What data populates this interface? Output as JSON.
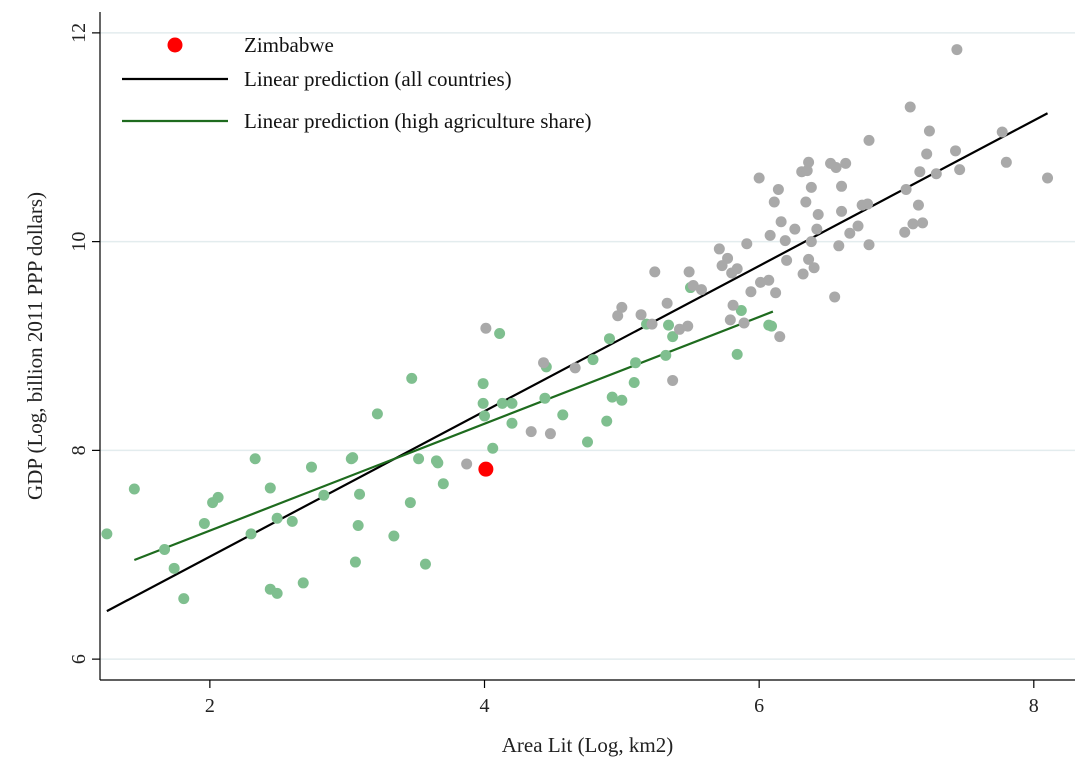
{
  "chart_data": {
    "type": "scatter",
    "title": "",
    "xlabel": "Area Lit (Log, km2)",
    "ylabel": "GDP (Log, billion 2011 PPP dollars)",
    "xlim": [
      1.2,
      8.3
    ],
    "ylim": [
      5.8,
      12.2
    ],
    "xticks": [
      2,
      4,
      6,
      8
    ],
    "yticks": [
      6,
      8,
      10,
      12
    ],
    "grid": true,
    "legend_position": "top-left",
    "colors": {
      "other": "#a9a9a9",
      "high_agri": "#7fbf8f",
      "zimbabwe": "#ff0000",
      "fit_all": "#000000",
      "fit_agri": "#1e6b1e"
    },
    "legend": [
      {
        "label": "Zimbabwe",
        "kind": "marker",
        "color": "#ff0000"
      },
      {
        "label": "Linear prediction (all countries)",
        "kind": "line",
        "color": "#000000"
      },
      {
        "label": "Linear prediction (high agriculture share)",
        "kind": "line",
        "color": "#1e6b1e"
      }
    ],
    "lines": [
      {
        "name": "Linear prediction (all countries)",
        "color": "#000000",
        "x": [
          1.25,
          8.1
        ],
        "y": [
          6.46,
          11.23
        ]
      },
      {
        "name": "Linear prediction (high agriculture share)",
        "color": "#1e6b1e",
        "x": [
          1.45,
          6.1
        ],
        "y": [
          6.95,
          9.33
        ]
      }
    ],
    "highlight": {
      "name": "Zimbabwe",
      "x": 4.01,
      "y": 7.82
    },
    "series": [
      {
        "group": "high_agri",
        "points": [
          [
            1.25,
            7.2
          ],
          [
            1.45,
            7.63
          ],
          [
            1.67,
            7.05
          ],
          [
            1.74,
            6.87
          ],
          [
            1.81,
            6.58
          ],
          [
            1.96,
            7.3
          ],
          [
            2.02,
            7.5
          ],
          [
            2.06,
            7.55
          ],
          [
            2.3,
            7.2
          ],
          [
            2.33,
            7.92
          ],
          [
            2.44,
            7.64
          ],
          [
            2.44,
            6.67
          ],
          [
            2.49,
            7.35
          ],
          [
            2.49,
            6.63
          ],
          [
            2.6,
            7.32
          ],
          [
            2.68,
            6.73
          ],
          [
            2.74,
            7.84
          ],
          [
            2.83,
            7.57
          ],
          [
            3.03,
            7.92
          ],
          [
            3.04,
            7.93
          ],
          [
            3.06,
            6.93
          ],
          [
            3.08,
            7.28
          ],
          [
            3.09,
            7.58
          ],
          [
            3.22,
            8.35
          ],
          [
            3.34,
            7.18
          ],
          [
            3.46,
            7.5
          ],
          [
            3.47,
            8.69
          ],
          [
            3.52,
            7.92
          ],
          [
            3.57,
            6.91
          ],
          [
            3.65,
            7.9
          ],
          [
            3.66,
            7.88
          ],
          [
            3.7,
            7.68
          ],
          [
            3.99,
            8.45
          ],
          [
            3.99,
            8.64
          ],
          [
            4.0,
            8.33
          ],
          [
            4.06,
            8.02
          ],
          [
            4.11,
            9.12
          ],
          [
            4.13,
            8.45
          ],
          [
            4.2,
            8.26
          ],
          [
            4.2,
            8.45
          ],
          [
            4.44,
            8.5
          ],
          [
            4.45,
            8.8
          ],
          [
            4.57,
            8.34
          ],
          [
            4.75,
            8.08
          ],
          [
            4.79,
            8.87
          ],
          [
            4.89,
            8.28
          ],
          [
            4.91,
            9.07
          ],
          [
            4.93,
            8.51
          ],
          [
            5.0,
            8.48
          ],
          [
            5.09,
            8.65
          ],
          [
            5.1,
            8.84
          ],
          [
            5.18,
            9.21
          ],
          [
            5.32,
            8.91
          ],
          [
            5.34,
            9.2
          ],
          [
            5.37,
            9.09
          ],
          [
            5.5,
            9.56
          ],
          [
            5.84,
            8.92
          ],
          [
            5.87,
            9.34
          ],
          [
            6.07,
            9.2
          ],
          [
            6.09,
            9.19
          ]
        ]
      },
      {
        "group": "other",
        "points": [
          [
            3.87,
            7.87
          ],
          [
            4.01,
            9.17
          ],
          [
            4.34,
            8.18
          ],
          [
            4.43,
            8.84
          ],
          [
            4.48,
            8.16
          ],
          [
            4.66,
            8.79
          ],
          [
            4.97,
            9.29
          ],
          [
            5.0,
            9.37
          ],
          [
            5.14,
            9.3
          ],
          [
            5.22,
            9.21
          ],
          [
            5.24,
            9.71
          ],
          [
            5.33,
            9.41
          ],
          [
            5.37,
            8.67
          ],
          [
            5.42,
            9.16
          ],
          [
            5.48,
            9.19
          ],
          [
            5.49,
            9.71
          ],
          [
            5.52,
            9.58
          ],
          [
            5.58,
            9.54
          ],
          [
            5.71,
            9.93
          ],
          [
            5.73,
            9.77
          ],
          [
            5.77,
            9.84
          ],
          [
            5.79,
            9.25
          ],
          [
            5.8,
            9.7
          ],
          [
            5.81,
            9.39
          ],
          [
            5.84,
            9.74
          ],
          [
            5.89,
            9.22
          ],
          [
            5.91,
            9.98
          ],
          [
            5.94,
            9.52
          ],
          [
            6.0,
            10.61
          ],
          [
            6.01,
            9.61
          ],
          [
            6.07,
            9.63
          ],
          [
            6.08,
            10.06
          ],
          [
            6.11,
            10.38
          ],
          [
            6.12,
            9.51
          ],
          [
            6.14,
            10.5
          ],
          [
            6.15,
            9.09
          ],
          [
            6.16,
            10.19
          ],
          [
            6.19,
            10.01
          ],
          [
            6.2,
            9.82
          ],
          [
            6.26,
            10.12
          ],
          [
            6.31,
            10.67
          ],
          [
            6.32,
            9.69
          ],
          [
            6.34,
            10.38
          ],
          [
            6.35,
            10.68
          ],
          [
            6.36,
            9.83
          ],
          [
            6.36,
            10.76
          ],
          [
            6.38,
            10.52
          ],
          [
            6.38,
            10.0
          ],
          [
            6.4,
            9.75
          ],
          [
            6.42,
            10.12
          ],
          [
            6.43,
            10.26
          ],
          [
            6.52,
            10.75
          ],
          [
            6.55,
            9.47
          ],
          [
            6.56,
            10.71
          ],
          [
            6.58,
            9.96
          ],
          [
            6.6,
            10.29
          ],
          [
            6.6,
            10.53
          ],
          [
            6.63,
            10.75
          ],
          [
            6.66,
            10.08
          ],
          [
            6.72,
            10.15
          ],
          [
            6.75,
            10.35
          ],
          [
            6.79,
            10.36
          ],
          [
            6.8,
            10.97
          ],
          [
            6.8,
            9.97
          ],
          [
            7.06,
            10.09
          ],
          [
            7.07,
            10.5
          ],
          [
            7.1,
            11.29
          ],
          [
            7.12,
            10.17
          ],
          [
            7.16,
            10.35
          ],
          [
            7.17,
            10.67
          ],
          [
            7.19,
            10.18
          ],
          [
            7.22,
            10.84
          ],
          [
            7.24,
            11.06
          ],
          [
            7.29,
            10.65
          ],
          [
            7.43,
            10.87
          ],
          [
            7.44,
            11.84
          ],
          [
            7.46,
            10.69
          ],
          [
            7.77,
            11.05
          ],
          [
            7.8,
            10.76
          ],
          [
            8.1,
            10.61
          ]
        ]
      }
    ]
  }
}
